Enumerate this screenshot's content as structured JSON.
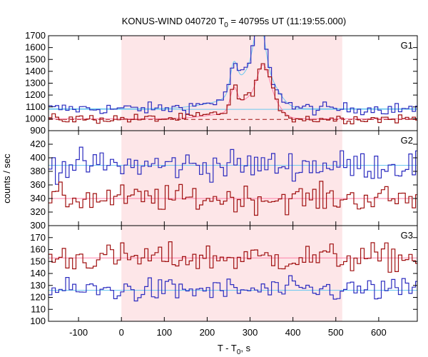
{
  "chart_data": {
    "type": "line",
    "title": {
      "prefix": "KONUS-WIND 040720 T",
      "sub": "0",
      "suffix": " = 40795s UT (11:19:55.000)"
    },
    "xlabel": {
      "prefix": "T - T",
      "sub": "0",
      "suffix": ", s"
    },
    "ylabel": "counts / sec",
    "xlim": [
      -170,
      690
    ],
    "x_ticks": [
      "-100",
      "0",
      "100",
      "200",
      "300",
      "400",
      "500",
      "600"
    ],
    "x_tick_values": [
      -100,
      0,
      100,
      200,
      300,
      400,
      500,
      600
    ],
    "highlight_interval": [
      0,
      515
    ],
    "step": 8,
    "colors": {
      "blue_data": "#2b2bbf",
      "blue_fit": "#6cc8f0",
      "red_data": "#a01010",
      "red_fit": "#ff80a8",
      "highlight": "#fde6e8"
    },
    "panels": [
      {
        "label": "G1",
        "ylim": [
          900,
          1700
        ],
        "y_ticks": [
          "900",
          "1000",
          "1100",
          "1200",
          "1300",
          "1400",
          "1500",
          "1600",
          "1700"
        ],
        "y_tick_values": [
          900,
          1000,
          1100,
          1200,
          1300,
          1400,
          1500,
          1600,
          1700
        ],
        "series": [
          {
            "color_key": "blue",
            "background": 1085,
            "noise": 25,
            "background_fit": [
              [
                -170,
                1080
              ],
              [
                690,
                1080
              ]
            ],
            "fit_dashed": false,
            "pulses": [
              {
                "t": 250,
                "amp": 60,
                "width": 60
              },
              {
                "t": 262,
                "amp": 220,
                "width": 8
              },
              {
                "t": 300,
                "amp": 260,
                "width": 30
              },
              {
                "t": 322,
                "amp": 420,
                "width": 12
              },
              {
                "t": 345,
                "amp": 170,
                "width": 25
              }
            ]
          },
          {
            "color_key": "red",
            "background": 1000,
            "noise": 20,
            "background_fit": [
              [
                -170,
                995
              ],
              [
                690,
                995
              ]
            ],
            "fit_dashed": true,
            "pulses": [
              {
                "t": 255,
                "amp": 40,
                "width": 60
              },
              {
                "t": 262,
                "amp": 170,
                "width": 8
              },
              {
                "t": 302,
                "amp": 140,
                "width": 30
              },
              {
                "t": 330,
                "amp": 280,
                "width": 14
              },
              {
                "t": 352,
                "amp": 120,
                "width": 20
              }
            ]
          }
        ]
      },
      {
        "label": "G2",
        "ylim": [
          300,
          440
        ],
        "y_ticks": [
          "300",
          "320",
          "340",
          "360",
          "380",
          "400",
          "420"
        ],
        "y_tick_values": [
          300,
          320,
          340,
          360,
          380,
          400,
          420
        ],
        "series": [
          {
            "color_key": "blue",
            "background": 389,
            "noise": 11,
            "background_fit": [
              [
                -170,
                389
              ],
              [
                690,
                389
              ]
            ],
            "fit_dashed": false,
            "pulses": []
          },
          {
            "color_key": "red",
            "background": 340,
            "noise": 10,
            "background_fit": [
              [
                -170,
                340
              ],
              [
                690,
                340
              ]
            ],
            "fit_dashed": false,
            "pulses": []
          }
        ]
      },
      {
        "label": "G3",
        "ylim": [
          100,
          180
        ],
        "y_ticks": [
          "100",
          "110",
          "120",
          "130",
          "140",
          "150",
          "160",
          "170"
        ],
        "y_tick_values": [
          100,
          110,
          120,
          130,
          140,
          150,
          160,
          170
        ],
        "series": [
          {
            "color_key": "red",
            "background": 153,
            "noise": 6,
            "background_fit": [
              [
                -170,
                153
              ],
              [
                690,
                153
              ]
            ],
            "fit_dashed": false,
            "pulses": []
          },
          {
            "color_key": "blue",
            "background": 126,
            "noise": 5,
            "background_fit": [
              [
                -170,
                126
              ],
              [
                690,
                126
              ]
            ],
            "fit_dashed": false,
            "pulses": []
          }
        ]
      }
    ]
  }
}
